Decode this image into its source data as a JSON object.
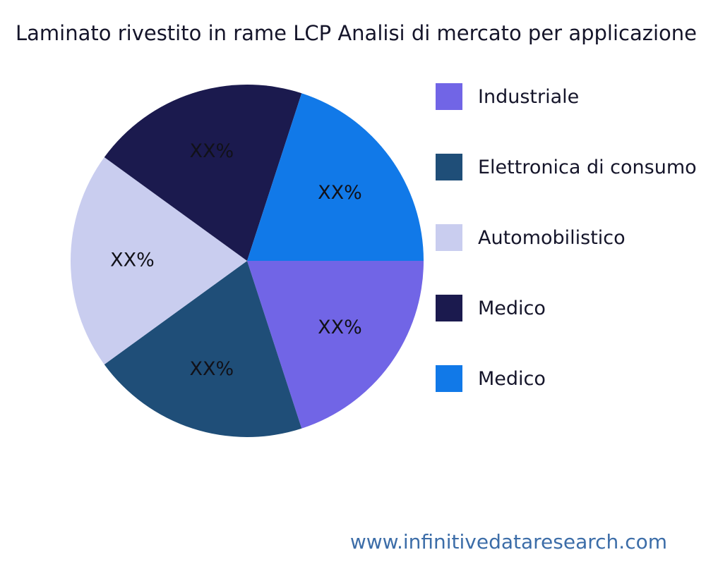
{
  "footer": {
    "url": "www.infinitivedataresearch.com"
  },
  "chart_data": {
    "type": "pie",
    "title": "Laminato rivestito in rame LCP Analisi di mercato per applicazione",
    "labels": [
      "Industriale",
      "Elettronica di consumo",
      "Automobilistico",
      "Medico",
      "Medico"
    ],
    "values": [
      20,
      20,
      20,
      20,
      20
    ],
    "display_values": [
      "XX%",
      "XX%",
      "XX%",
      "XX%",
      "XX%"
    ],
    "colors": [
      "#7165e6",
      "#1f4e78",
      "#c9cdef",
      "#1b1a4e",
      "#1179e8"
    ],
    "start_angle_deg": 0,
    "direction": "clockwise",
    "legend_position": "right",
    "label_distance": 0.65,
    "text_color": "#15152a",
    "footer_color": "#3c6da8",
    "background_color": "#ffffff"
  }
}
